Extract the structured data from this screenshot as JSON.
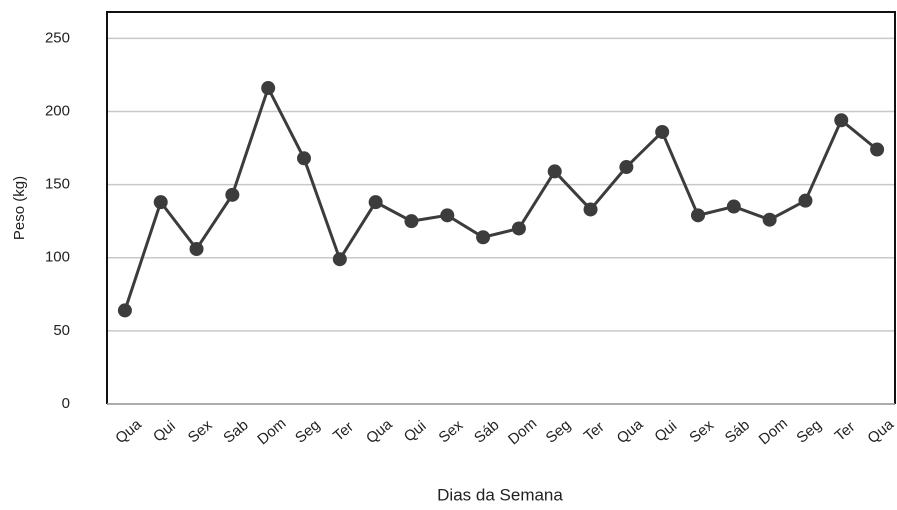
{
  "chart_data": {
    "type": "line",
    "x_label": "Dias da Semana",
    "y_label": "Peso (kg)",
    "categories": [
      "Qua",
      "Qui",
      "Sex",
      "Sab",
      "Dom",
      "Seg",
      "Ter",
      "Qua",
      "Qui",
      "Sex",
      "Sáb",
      "Dom",
      "Seg",
      "Ter",
      "Qua",
      "Qui",
      "Sex",
      "Sáb",
      "Dom",
      "Seg",
      "Ter",
      "Qua"
    ],
    "values": [
      64,
      138,
      106,
      143,
      216,
      168,
      99,
      138,
      125,
      129,
      114,
      120,
      159,
      133,
      162,
      186,
      129,
      135,
      126,
      139,
      194,
      174
    ],
    "color": "#3c3c3c",
    "ylim": [
      0,
      268
    ],
    "yticks": [
      0,
      50,
      100,
      150,
      200,
      250
    ],
    "grid": true
  }
}
